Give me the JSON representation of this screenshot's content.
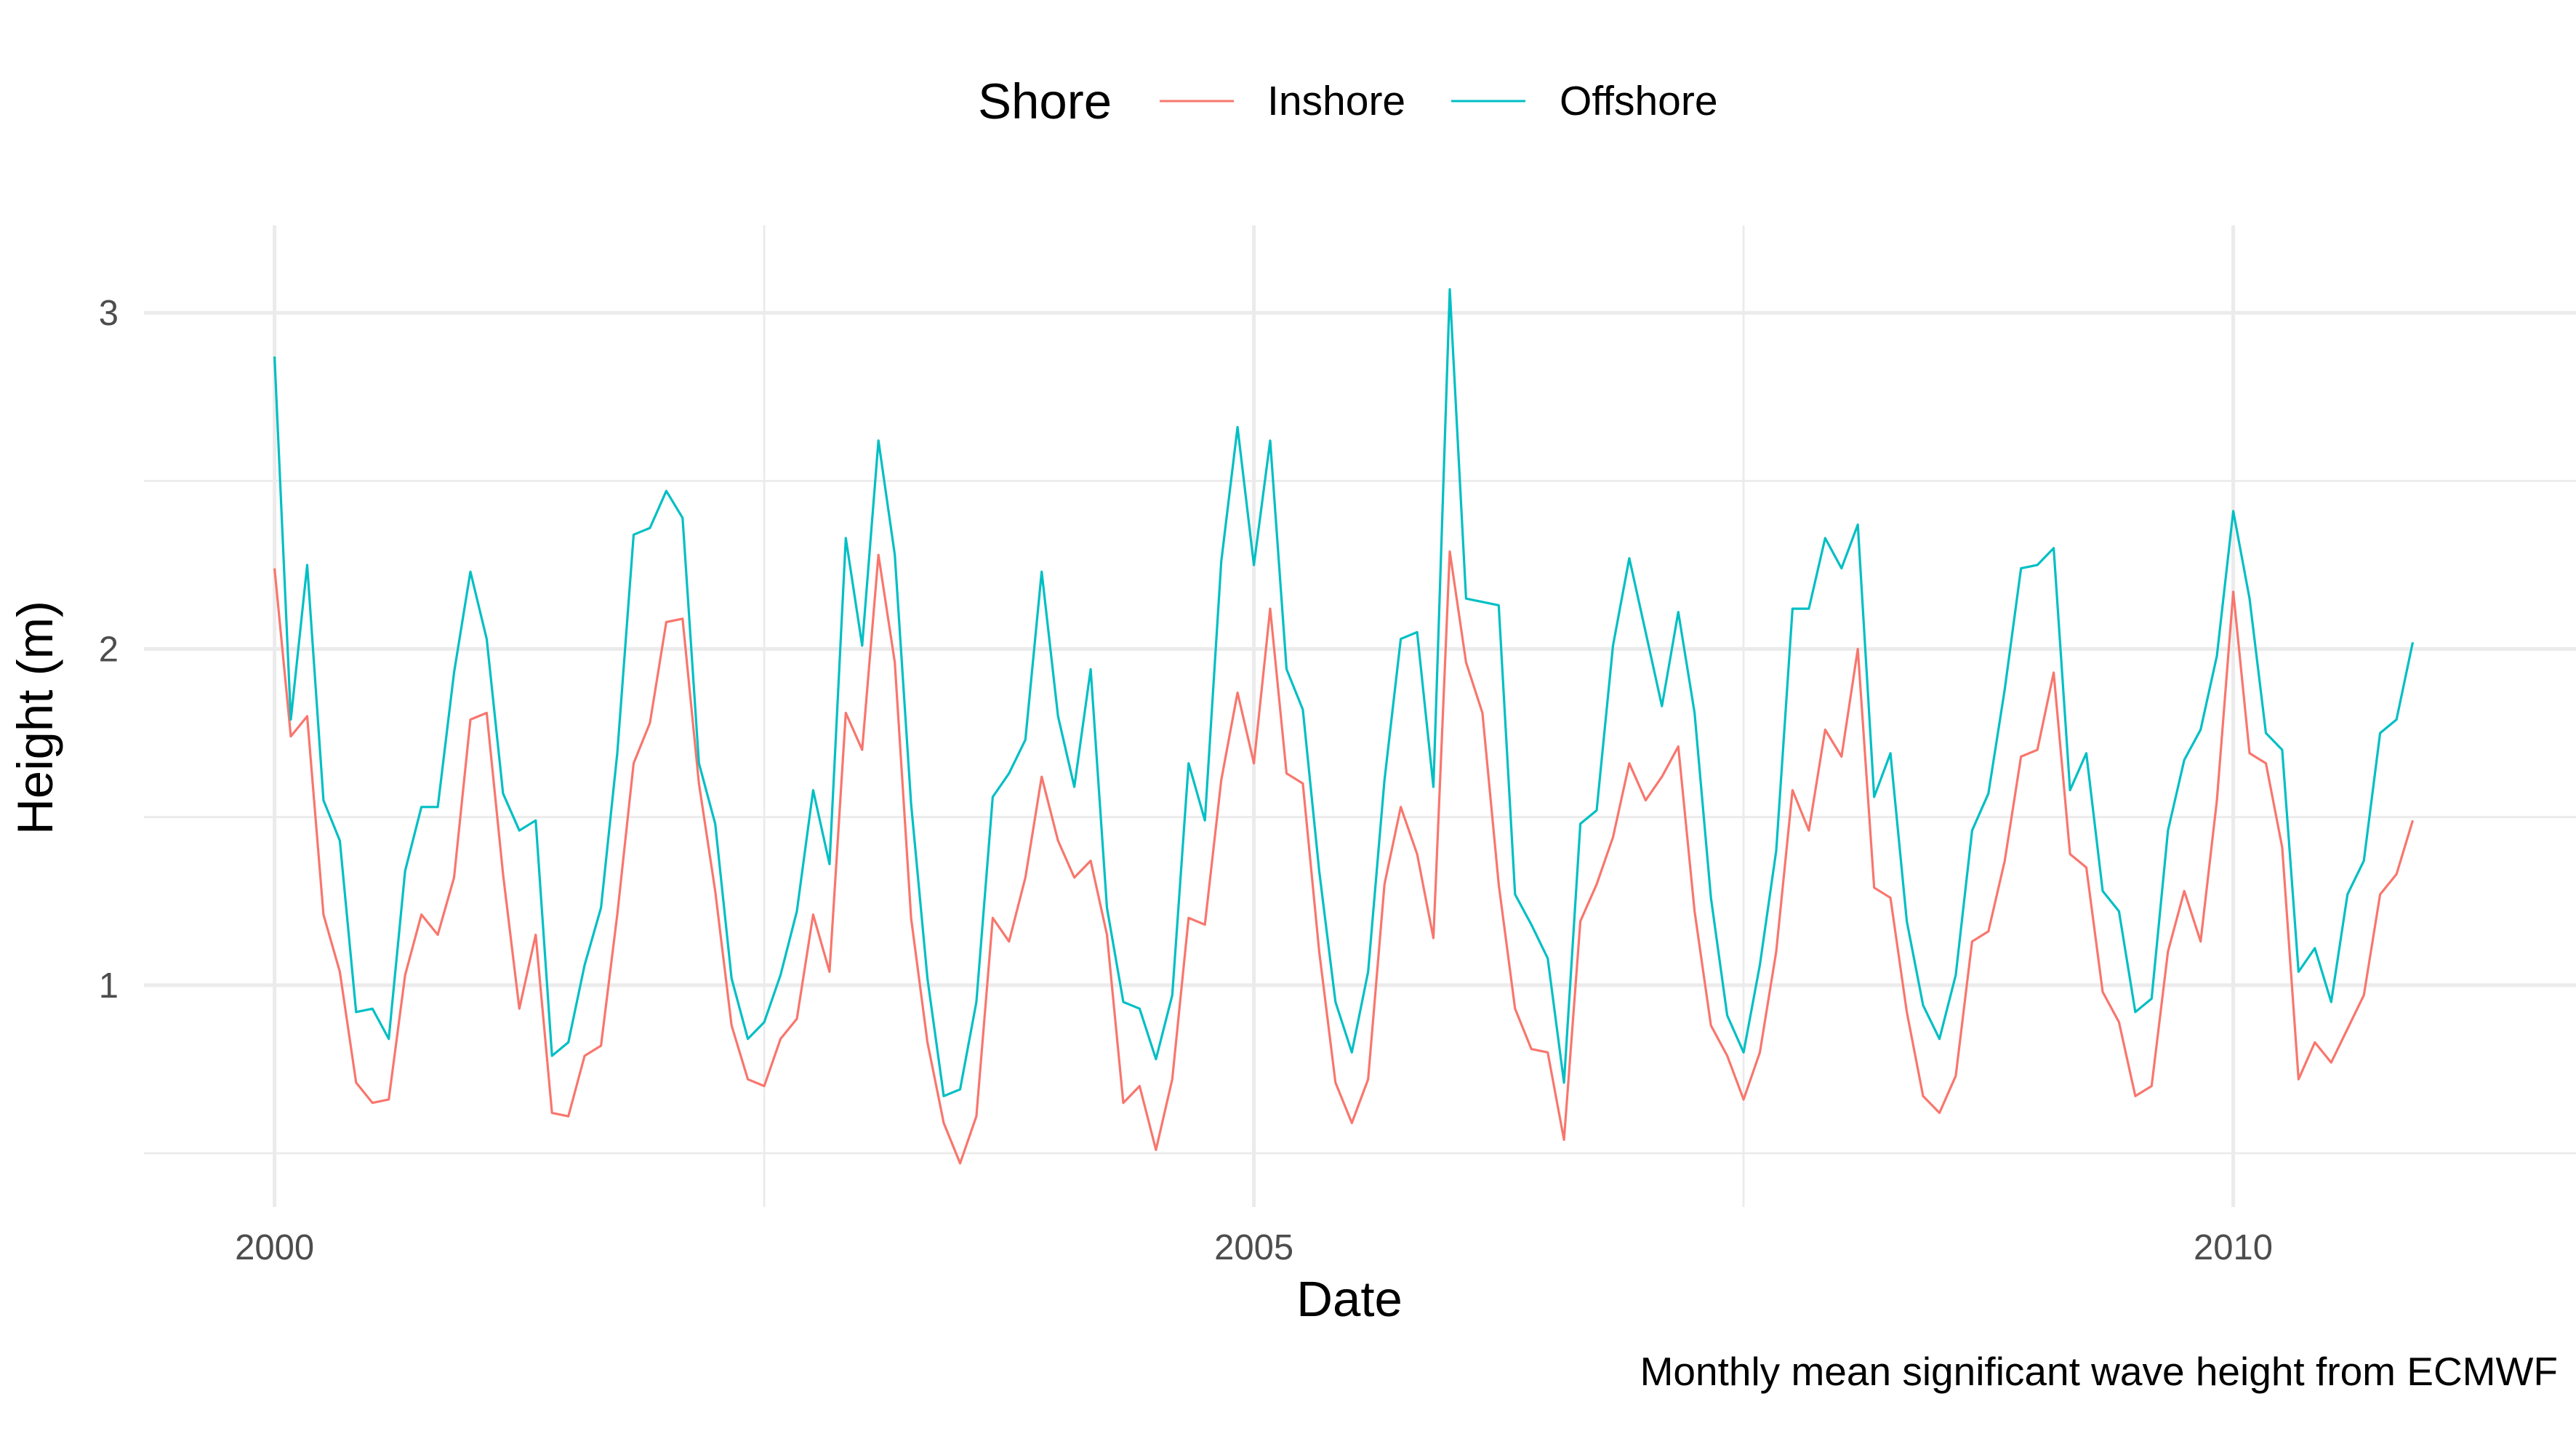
{
  "chart_data": {
    "type": "line",
    "title": "",
    "xlabel": "Date",
    "ylabel": "Height (m)",
    "caption": "Monthly mean significant wave height from ECMWF",
    "legend": {
      "title": "Shore",
      "position": "top"
    },
    "x_axis": {
      "type": "date",
      "range": [
        "1999-05-01",
        "2011-10-01"
      ],
      "ticks": [
        "2000",
        "2005",
        "2010"
      ]
    },
    "y_axis": {
      "range": [
        0.34,
        3.26
      ],
      "ticks": [
        "1",
        "2",
        "3"
      ]
    },
    "grid": true,
    "x_start": "2000-01",
    "x_frequency": "monthly",
    "series": [
      {
        "name": "Inshore",
        "color": "#F8766D",
        "values": [
          2.24,
          1.74,
          1.8,
          1.21,
          1.04,
          0.71,
          0.65,
          0.66,
          1.03,
          1.21,
          1.15,
          1.32,
          1.79,
          1.81,
          1.33,
          0.93,
          1.15,
          0.62,
          0.61,
          0.79,
          0.82,
          1.21,
          1.66,
          1.78,
          2.08,
          2.09,
          1.6,
          1.28,
          0.88,
          0.72,
          0.7,
          0.84,
          0.9,
          1.21,
          1.04,
          1.81,
          1.7,
          2.28,
          1.96,
          1.2,
          0.83,
          0.59,
          0.47,
          0.61,
          1.2,
          1.13,
          1.32,
          1.62,
          1.43,
          1.32,
          1.37,
          1.15,
          0.65,
          0.7,
          0.51,
          0.72,
          1.2,
          1.18,
          1.61,
          1.87,
          1.66,
          2.12,
          1.63,
          1.6,
          1.1,
          0.71,
          0.59,
          0.72,
          1.3,
          1.53,
          1.39,
          1.14,
          2.29,
          1.96,
          1.81,
          1.3,
          0.93,
          0.81,
          0.8,
          0.54,
          1.19,
          1.3,
          1.44,
          1.66,
          1.55,
          1.62,
          1.71,
          1.22,
          0.88,
          0.79,
          0.66,
          0.8,
          1.1,
          1.58,
          1.46,
          1.76,
          1.68,
          2.0,
          1.29,
          1.26,
          0.92,
          0.67,
          0.62,
          0.73,
          1.13,
          1.16,
          1.37,
          1.68,
          1.7,
          1.93,
          1.39,
          1.35,
          0.98,
          0.89,
          0.67,
          0.7,
          1.1,
          1.28,
          1.13,
          1.55,
          2.17,
          1.69,
          1.66,
          1.41,
          0.72,
          0.83,
          0.77,
          0.87,
          0.97,
          1.27,
          1.33,
          1.49
        ]
      },
      {
        "name": "Offshore",
        "color": "#00BFC4",
        "values": [
          2.87,
          1.79,
          2.25,
          1.55,
          1.43,
          0.92,
          0.93,
          0.84,
          1.34,
          1.53,
          1.53,
          1.93,
          2.23,
          2.03,
          1.57,
          1.46,
          1.49,
          0.79,
          0.83,
          1.06,
          1.23,
          1.69,
          2.34,
          2.36,
          2.47,
          2.39,
          1.66,
          1.48,
          1.02,
          0.84,
          0.89,
          1.03,
          1.22,
          1.58,
          1.36,
          2.33,
          2.01,
          2.62,
          2.28,
          1.54,
          1.02,
          0.67,
          0.69,
          0.95,
          1.56,
          1.63,
          1.73,
          2.23,
          1.8,
          1.59,
          1.94,
          1.23,
          0.95,
          0.93,
          0.78,
          0.97,
          1.66,
          1.49,
          2.26,
          2.66,
          2.25,
          2.62,
          1.94,
          1.82,
          1.34,
          0.95,
          0.8,
          1.04,
          1.61,
          2.03,
          2.05,
          1.59,
          3.07,
          2.15,
          2.14,
          2.13,
          1.27,
          1.18,
          1.08,
          0.71,
          1.48,
          1.52,
          2.01,
          2.27,
          2.05,
          1.83,
          2.11,
          1.81,
          1.26,
          0.91,
          0.8,
          1.06,
          1.4,
          2.12,
          2.12,
          2.33,
          2.24,
          2.37,
          1.56,
          1.69,
          1.19,
          0.94,
          0.84,
          1.03,
          1.46,
          1.57,
          1.88,
          2.24,
          2.25,
          2.3,
          1.58,
          1.69,
          1.28,
          1.22,
          0.92,
          0.96,
          1.46,
          1.67,
          1.76,
          1.98,
          2.41,
          2.15,
          1.75,
          1.7,
          1.04,
          1.11,
          0.95,
          1.27,
          1.37,
          1.75,
          1.79,
          2.02
        ]
      }
    ]
  }
}
